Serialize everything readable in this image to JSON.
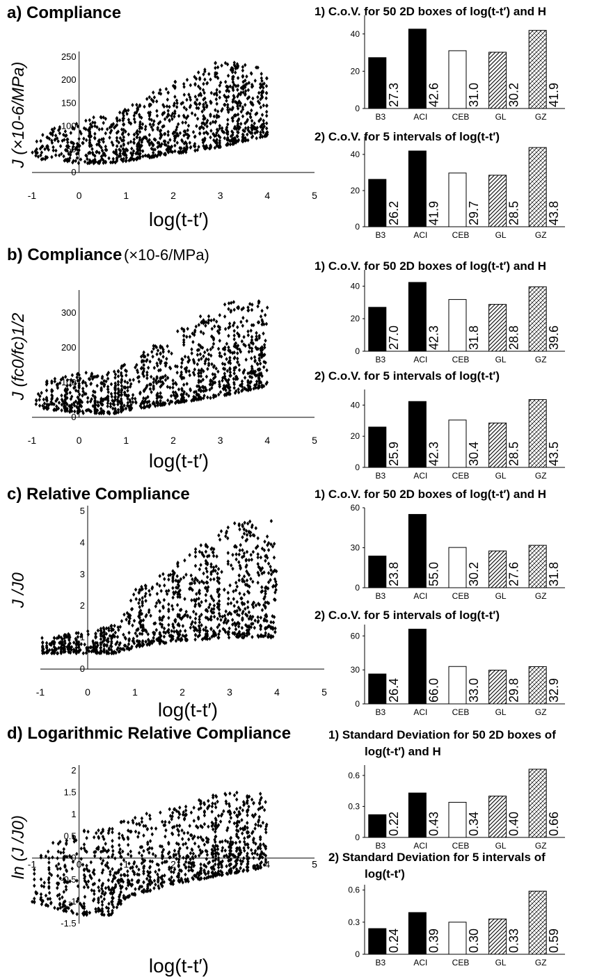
{
  "rows": [
    {
      "title": "a) Compliance",
      "title_suffix": "",
      "scatter": {
        "ylabel": "J (×10-6/MPa)",
        "xlabel": "log(t-t′)",
        "xticks": [
          "-1",
          "0",
          "1",
          "2",
          "3",
          "4",
          "5"
        ],
        "yticks": [
          "0",
          "50",
          "100",
          "150",
          "200",
          "250"
        ],
        "xlim": [
          -1,
          5
        ],
        "ylim": [
          0,
          250
        ],
        "envelope": {
          "x": [
            -1,
            0,
            0.7,
            1,
            2,
            3,
            4
          ],
          "low": [
            30,
            20,
            20,
            25,
            40,
            55,
            80
          ],
          "high": [
            75,
            120,
            120,
            145,
            195,
            245,
            230
          ]
        }
      },
      "bars": [
        {
          "title": "1) C.o.V. for 50 2D boxes of log(t-t′) and H",
          "ylim": [
            0,
            50
          ],
          "yticks": [
            "0",
            "20",
            "40"
          ],
          "categories": [
            "B3",
            "ACI",
            "CEB",
            "GL",
            "GZ"
          ],
          "values": [
            27.3,
            42.6,
            31.0,
            30.2,
            41.9
          ],
          "value_labels": [
            "27.3",
            "42.6",
            "31.0",
            "30.2",
            "41.9"
          ]
        },
        {
          "title": "2) C.o.V. for 5 intervals of log(t-t′)",
          "ylim": [
            0,
            50
          ],
          "yticks": [
            "0",
            "20",
            "40"
          ],
          "categories": [
            "B3",
            "ACI",
            "CEB",
            "GL",
            "GZ"
          ],
          "values": [
            26.2,
            41.9,
            29.7,
            28.5,
            43.8
          ],
          "value_labels": [
            "26.2",
            "41.9",
            "29.7",
            "28.5",
            "43.8"
          ]
        }
      ]
    },
    {
      "title": "b) Compliance",
      "title_suffix": "(×10-6/MPa)",
      "scatter": {
        "ylabel": "J (fc0/fc)1/2",
        "xlabel": "log(t-t′)",
        "xticks": [
          "-1",
          "0",
          "1",
          "2",
          "3",
          "4",
          "5"
        ],
        "yticks": [
          "0",
          "100",
          "200",
          "300"
        ],
        "xlim": [
          -1,
          5
        ],
        "ylim": [
          0,
          350
        ],
        "envelope": {
          "x": [
            -1,
            0,
            0.7,
            1,
            2,
            3,
            4
          ],
          "low": [
            30,
            10,
            10,
            20,
            40,
            60,
            90
          ],
          "high": [
            100,
            130,
            130,
            160,
            240,
            330,
            340
          ]
        }
      },
      "bars": [
        {
          "title": "1) C.o.V. for 50 2D boxes of log(t-t′) and H",
          "ylim": [
            0,
            50
          ],
          "yticks": [
            "0",
            "20",
            "40"
          ],
          "categories": [
            "B3",
            "ACI",
            "CEB",
            "GL",
            "GZ"
          ],
          "values": [
            27.0,
            42.3,
            31.8,
            28.8,
            39.6
          ],
          "value_labels": [
            "27.0",
            "42.3",
            "31.8",
            "28.8",
            "39.6"
          ]
        },
        {
          "title": "2) C.o.V. for 5 intervals of log(t-t′)",
          "ylim": [
            0,
            50
          ],
          "yticks": [
            "0",
            "20",
            "40"
          ],
          "categories": [
            "B3",
            "ACI",
            "CEB",
            "GL",
            "GZ"
          ],
          "values": [
            25.9,
            42.3,
            30.4,
            28.5,
            43.5
          ],
          "value_labels": [
            "25.9",
            "42.3",
            "30.4",
            "28.5",
            "43.5"
          ]
        }
      ]
    },
    {
      "title": "c) Relative Compliance",
      "title_suffix": "",
      "scatter": {
        "ylabel": "J /J0",
        "xlabel": "log(t-t′)",
        "xticks": [
          "-1",
          "0",
          "1",
          "2",
          "3",
          "4",
          "5"
        ],
        "yticks": [
          "0",
          "1",
          "2",
          "3",
          "4",
          "5"
        ],
        "xlim": [
          -1,
          5
        ],
        "ylim": [
          0,
          5
        ],
        "envelope": {
          "x": [
            -1,
            0,
            0.7,
            1,
            2,
            3,
            4
          ],
          "low": [
            0.5,
            0.5,
            0.5,
            0.7,
            0.9,
            1.0,
            1.0
          ],
          "high": [
            1.0,
            1.2,
            1.5,
            2.5,
            3.5,
            4.6,
            4.8
          ]
        }
      },
      "bars": [
        {
          "title": "1) C.o.V. for 50 2D boxes of log(t-t′) and H",
          "ylim": [
            0,
            60
          ],
          "yticks": [
            "0",
            "30",
            "60"
          ],
          "categories": [
            "B3",
            "ACI",
            "CEB",
            "GL",
            "GZ"
          ],
          "values": [
            23.8,
            55.0,
            30.2,
            27.6,
            31.8
          ],
          "value_labels": [
            "23.8",
            "55.0",
            "30.2",
            "27.6",
            "31.8"
          ]
        },
        {
          "title": "2) C.o.V. for 5 intervals of log(t-t′)",
          "ylim": [
            0,
            70
          ],
          "yticks": [
            "0",
            "30",
            "60"
          ],
          "categories": [
            "B3",
            "ACI",
            "CEB",
            "GL",
            "GZ"
          ],
          "values": [
            26.4,
            66.0,
            33.0,
            29.8,
            32.9
          ],
          "value_labels": [
            "26.4",
            "66.0",
            "33.0",
            "29.8",
            "32.9"
          ]
        }
      ]
    },
    {
      "title": "d) Logarithmic Relative Compliance",
      "title_suffix": "",
      "scatter": {
        "ylabel": "ln (J /J0)",
        "xlabel": "log(t-t′)",
        "xticks": [
          "-1",
          "0",
          "1",
          "2",
          "3",
          "4",
          "5"
        ],
        "yticks": [
          "-1.5",
          "-1",
          "-0.5",
          "0",
          "0.5",
          "1",
          "1.5",
          "2"
        ],
        "xlim": [
          -1,
          5
        ],
        "ylim": [
          -1.5,
          2
        ],
        "envelope": {
          "x": [
            -1,
            0,
            0.7,
            1,
            2,
            3,
            4
          ],
          "low": [
            -1.0,
            -1.3,
            -1.3,
            -0.9,
            -0.6,
            -0.4,
            -0.2
          ],
          "high": [
            0.2,
            0.6,
            0.8,
            0.9,
            1.2,
            1.5,
            1.5
          ]
        }
      },
      "bars": [
        {
          "title": "1) Standard Deviation for 50 2D boxes of log(t-t′) and H",
          "ylim": [
            0,
            0.7
          ],
          "yticks": [
            "0",
            "0.3",
            "0.6"
          ],
          "categories": [
            "B3",
            "ACI",
            "CEB",
            "GL",
            "GZ"
          ],
          "values": [
            0.22,
            0.43,
            0.34,
            0.4,
            0.66
          ],
          "value_labels": [
            "0.22",
            "0.43",
            "0.34",
            "0.40",
            "0.66"
          ]
        },
        {
          "title": "2) Standard Deviation for 5 intervals of log(t-t′)",
          "ylim": [
            0,
            0.65
          ],
          "yticks": [
            "0",
            "0.3",
            "0.6"
          ],
          "categories": [
            "B3",
            "ACI",
            "CEB",
            "GL",
            "GZ"
          ],
          "values": [
            0.24,
            0.39,
            0.3,
            0.33,
            0.59
          ],
          "value_labels": [
            "0.24",
            "0.39",
            "0.30",
            "0.33",
            "0.59"
          ]
        }
      ]
    }
  ],
  "chart_data": [
    {
      "type": "scatter",
      "panel": "a",
      "ylabel": "J (×10-6/MPa)",
      "xlabel": "log(t-t′)",
      "xlim": [
        -1,
        5
      ],
      "ylim": [
        0,
        250
      ]
    },
    {
      "type": "bar",
      "panel": "a1",
      "title": "1) C.o.V. for 50 2D boxes of log(t-t′) and H",
      "categories": [
        "B3",
        "ACI",
        "CEB",
        "GL",
        "GZ"
      ],
      "values": [
        27.3,
        42.6,
        31.0,
        30.2,
        41.9
      ]
    },
    {
      "type": "bar",
      "panel": "a2",
      "title": "2) C.o.V. for 5 intervals of log(t-t′)",
      "categories": [
        "B3",
        "ACI",
        "CEB",
        "GL",
        "GZ"
      ],
      "values": [
        26.2,
        41.9,
        29.7,
        28.5,
        43.8
      ]
    },
    {
      "type": "scatter",
      "panel": "b",
      "ylabel": "J (fc0/fc)1/2",
      "xlabel": "log(t-t′)",
      "xlim": [
        -1,
        5
      ],
      "ylim": [
        0,
        350
      ]
    },
    {
      "type": "bar",
      "panel": "b1",
      "title": "1) C.o.V. for 50 2D boxes of log(t-t′) and H",
      "categories": [
        "B3",
        "ACI",
        "CEB",
        "GL",
        "GZ"
      ],
      "values": [
        27.0,
        42.3,
        31.8,
        28.8,
        39.6
      ]
    },
    {
      "type": "bar",
      "panel": "b2",
      "title": "2) C.o.V. for 5 intervals of log(t-t′)",
      "categories": [
        "B3",
        "ACI",
        "CEB",
        "GL",
        "GZ"
      ],
      "values": [
        25.9,
        42.3,
        30.4,
        28.5,
        43.5
      ]
    },
    {
      "type": "scatter",
      "panel": "c",
      "ylabel": "J /J0",
      "xlabel": "log(t-t′)",
      "xlim": [
        -1,
        5
      ],
      "ylim": [
        0,
        5
      ]
    },
    {
      "type": "bar",
      "panel": "c1",
      "title": "1) C.o.V. for 50 2D boxes of log(t-t′) and H",
      "categories": [
        "B3",
        "ACI",
        "CEB",
        "GL",
        "GZ"
      ],
      "values": [
        23.8,
        55.0,
        30.2,
        27.6,
        31.8
      ]
    },
    {
      "type": "bar",
      "panel": "c2",
      "title": "2) C.o.V. for 5 intervals of log(t-t′)",
      "categories": [
        "B3",
        "ACI",
        "CEB",
        "GL",
        "GZ"
      ],
      "values": [
        26.4,
        66.0,
        33.0,
        29.8,
        32.9
      ]
    },
    {
      "type": "scatter",
      "panel": "d",
      "ylabel": "ln (J /J0)",
      "xlabel": "log(t-t′)",
      "xlim": [
        -1,
        5
      ],
      "ylim": [
        -1.5,
        2
      ]
    },
    {
      "type": "bar",
      "panel": "d1",
      "title": "1) Standard Deviation for 50 2D boxes of log(t-t′) and H",
      "categories": [
        "B3",
        "ACI",
        "CEB",
        "GL",
        "GZ"
      ],
      "values": [
        0.22,
        0.43,
        0.34,
        0.4,
        0.66
      ]
    },
    {
      "type": "bar",
      "panel": "d2",
      "title": "2) Standard Deviation for 5 intervals of log(t-t′)",
      "categories": [
        "B3",
        "ACI",
        "CEB",
        "GL",
        "GZ"
      ],
      "values": [
        0.24,
        0.39,
        0.3,
        0.33,
        0.59
      ]
    }
  ]
}
